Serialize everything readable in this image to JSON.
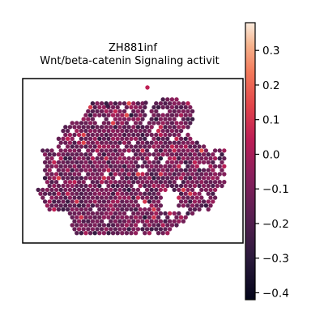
{
  "chart_data": {
    "type": "scatter",
    "title": "ZH881inf",
    "subtitle": "Wnt/beta-catenin Signaling activit",
    "xlabel": "",
    "ylabel": "",
    "grid": false,
    "axes_frame": true,
    "axis_ticks_shown": false,
    "colormap": "rocket",
    "colorbar": {
      "vmin": -0.42,
      "vmax": 0.38,
      "ticks": [
        0.3,
        0.2,
        0.1,
        0.0,
        -0.1,
        -0.2,
        -0.3,
        -0.4
      ],
      "tick_labels": [
        "0.3",
        "0.2",
        "0.1",
        "0.0",
        "−0.1",
        "−0.2",
        "−0.3",
        "−0.4"
      ],
      "placement": "right"
    },
    "colors": {
      "low": "#03051a",
      "mid_low": "#4c1d4b",
      "mid": "#a11a5b",
      "mid_high": "#e83f3f",
      "high_mid": "#f69c73",
      "high": "#faebdd"
    },
    "points_description": "hexagonal grid of spatial spots, each colored by signaling score"
  }
}
